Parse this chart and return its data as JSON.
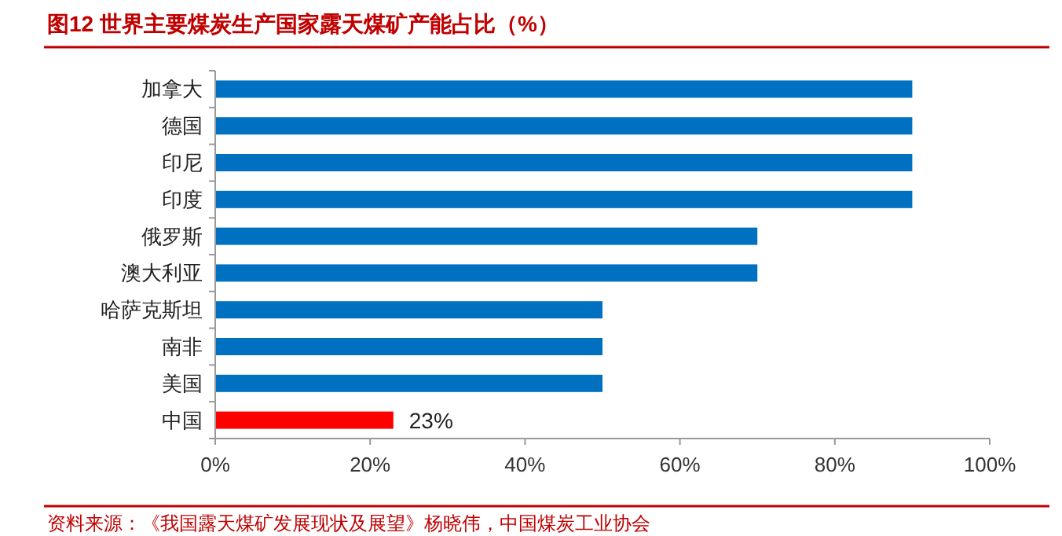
{
  "chart_data": {
    "type": "bar",
    "orientation": "horizontal",
    "title": "图12 世界主要煤炭生产国家露天煤矿产能占比（%）",
    "categories": [
      "加拿大",
      "德国",
      "印尼",
      "印度",
      "俄罗斯",
      "澳大利亚",
      "哈萨克斯坦",
      "南非",
      "美国",
      "中国"
    ],
    "values": [
      90,
      90,
      90,
      90,
      70,
      70,
      50,
      50,
      50,
      23
    ],
    "colors": [
      "#0070c0",
      "#0070c0",
      "#0070c0",
      "#0070c0",
      "#0070c0",
      "#0070c0",
      "#0070c0",
      "#0070c0",
      "#0070c0",
      "#ff0000"
    ],
    "value_labels": [
      null,
      null,
      null,
      null,
      null,
      null,
      null,
      null,
      null,
      "23%"
    ],
    "xlim": [
      0,
      100
    ],
    "xticks": [
      {
        "value": 0,
        "label": "0%"
      },
      {
        "value": 20,
        "label": "20%"
      },
      {
        "value": 40,
        "label": "40%"
      },
      {
        "value": 60,
        "label": "60%"
      },
      {
        "value": 80,
        "label": "80%"
      },
      {
        "value": 100,
        "label": "100%"
      }
    ],
    "grid": false,
    "annotations": [
      "资料来源：《我国露天煤矿发展现状及展望》杨晓伟，中国煤炭工业协会"
    ]
  }
}
